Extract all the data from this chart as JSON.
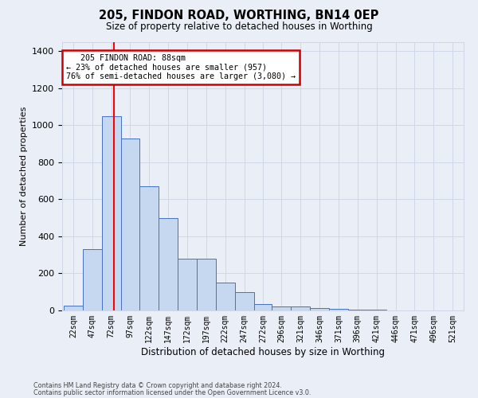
{
  "title": "205, FINDON ROAD, WORTHING, BN14 0EP",
  "subtitle": "Size of property relative to detached houses in Worthing",
  "xlabel": "Distribution of detached houses by size in Worthing",
  "ylabel": "Number of detached properties",
  "footer1": "Contains HM Land Registry data © Crown copyright and database right 2024.",
  "footer2": "Contains public sector information licensed under the Open Government Licence v3.0.",
  "annotation_line1": "   205 FINDON ROAD: 88sqm",
  "annotation_line2": "← 23% of detached houses are smaller (957)",
  "annotation_line3": "76% of semi-detached houses are larger (3,080) →",
  "property_size": 88,
  "bar_left_edges": [
    22,
    47,
    72,
    97,
    122,
    147,
    172,
    197,
    222,
    247,
    272,
    296,
    321,
    346,
    371,
    396,
    421,
    446,
    471,
    496,
    521
  ],
  "bar_widths": [
    25,
    25,
    25,
    25,
    25,
    25,
    25,
    25,
    25,
    25,
    24,
    25,
    25,
    25,
    25,
    25,
    25,
    25,
    25,
    25,
    25
  ],
  "bar_heights": [
    25,
    330,
    1050,
    930,
    670,
    500,
    280,
    280,
    150,
    100,
    35,
    20,
    20,
    15,
    8,
    5,
    3,
    2,
    1,
    1,
    1
  ],
  "bar_color": "#c5d8f0",
  "bar_edge_color": "#4472c4",
  "red_line_x": 88,
  "ylim": [
    0,
    1450
  ],
  "yticks": [
    0,
    200,
    400,
    600,
    800,
    1000,
    1200,
    1400
  ],
  "tick_labels": [
    "22sqm",
    "47sqm",
    "72sqm",
    "97sqm",
    "122sqm",
    "147sqm",
    "172sqm",
    "197sqm",
    "222sqm",
    "247sqm",
    "272sqm",
    "296sqm",
    "321sqm",
    "346sqm",
    "371sqm",
    "396sqm",
    "421sqm",
    "446sqm",
    "471sqm",
    "496sqm",
    "521sqm"
  ],
  "annotation_box_color": "#ffffff",
  "annotation_box_edge": "#cc0000",
  "grid_color": "#d0d8e8",
  "bg_color": "#eaeff7"
}
